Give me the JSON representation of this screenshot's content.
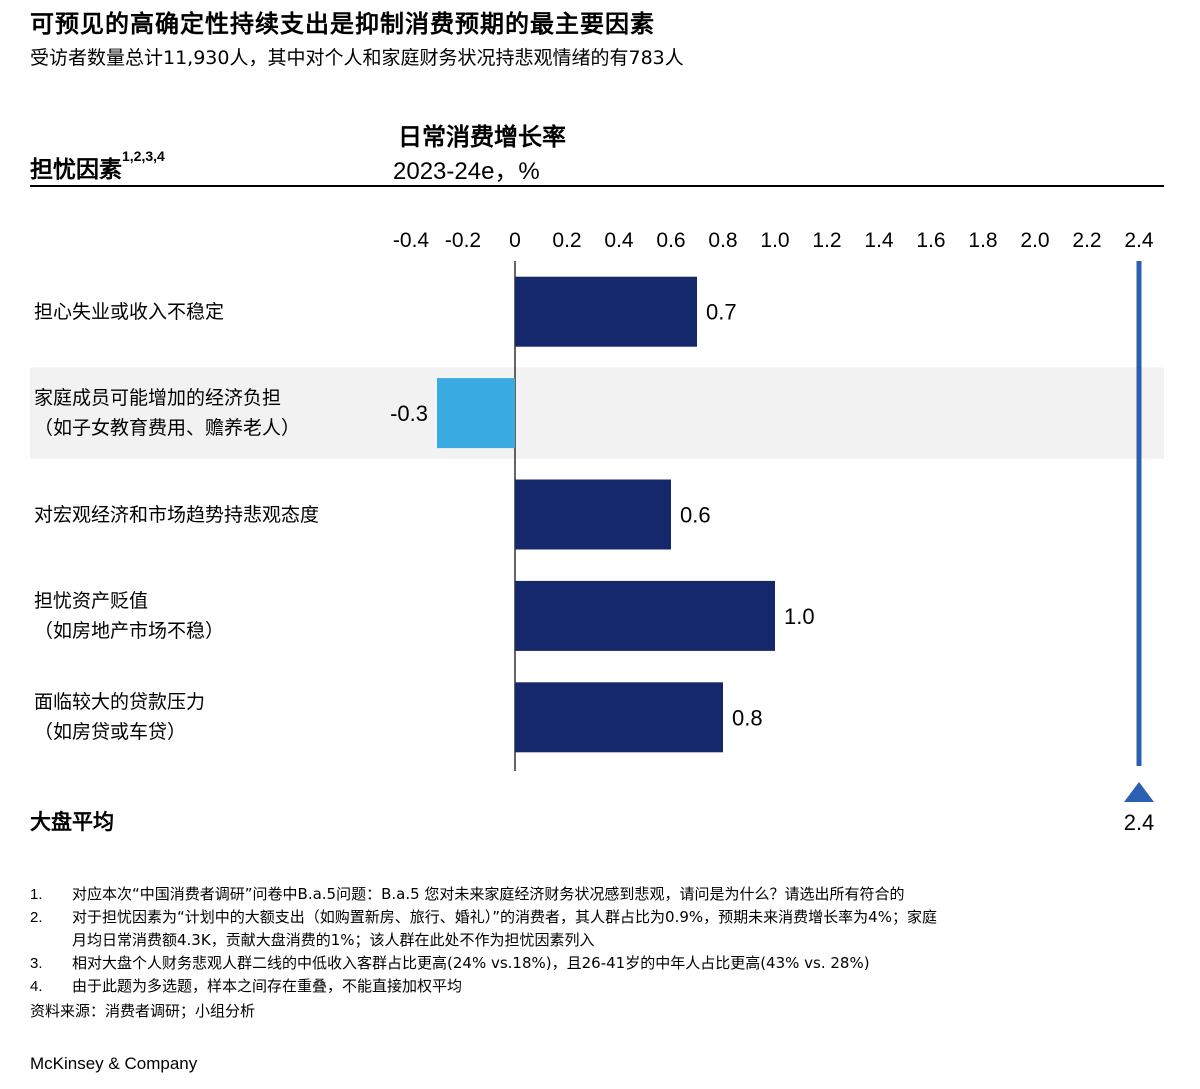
{
  "title": "可预见的高确定性持续支出是抑制消费预期的最主要因素",
  "subtitle": "受访者数量总计11,930人，其中对个人和家庭财务状况持悲观情绪的有783人",
  "metric": {
    "title": "日常消费增长率",
    "unit_line": "2023-24e，%"
  },
  "factor_header": {
    "text": "担忧因素",
    "superscript": "1,2,3,4"
  },
  "chart_data": {
    "type": "bar",
    "orientation": "horizontal",
    "categories": [
      [
        "担心失业或收入不稳定"
      ],
      [
        "家庭成员可能增加的经济负担",
        "（如子女教育费用、赡养老人）"
      ],
      [
        "对宏观经济和市场趋势持悲观态度"
      ],
      [
        "担忧资产贬值",
        "（如房地产市场不稳）"
      ],
      [
        "面临较大的贷款压力",
        "（如房贷或车贷）"
      ]
    ],
    "values": [
      0.7,
      -0.3,
      0.6,
      1.0,
      0.8
    ],
    "value_labels": [
      "0.7",
      "-0.3",
      "0.6",
      "1.0",
      "0.8"
    ],
    "xticks": [
      "-0.4",
      "-0.2",
      "0",
      "0.2",
      "0.4",
      "0.6",
      "0.8",
      "1.0",
      "1.2",
      "1.4",
      "1.6",
      "1.8",
      "2.0",
      "2.2",
      "2.4"
    ],
    "xlim": [
      -0.4,
      2.4
    ],
    "reference": {
      "label": "大盘平均",
      "value": 2.4,
      "value_label": "2.4"
    },
    "highlighted_category_index": 1,
    "colors": {
      "positive": "#14286b",
      "negative": "#3aabe0",
      "reference": "#2b5fb0",
      "highlight_band": "#f2f2f2"
    }
  },
  "footnotes": [
    {
      "num": "1.",
      "lines": [
        "对应本次“中国消费者调研”问卷中B.a.5问题：B.a.5 您对未来家庭经济财务状况感到悲观，请问是为什么？请选出所有符合的"
      ]
    },
    {
      "num": "2.",
      "lines": [
        "对于担忧因素为“计划中的大额支出（如购置新房、旅行、婚礼）”的消费者，其人群占比为0.9%，预期未来消费增长率为4%；家庭",
        "月均日常消费额4.3K，贡献大盘消费的1%；该人群在此处不作为担忧因素列入"
      ]
    },
    {
      "num": "3.",
      "lines": [
        "相对大盘个人财务悲观人群二线的中低收入客群占比更高(24% vs.18%)，且26-41岁的中年人占比更高(43% vs. 28%)"
      ]
    },
    {
      "num": "4.",
      "lines": [
        "由于此题为多选题，样本之间存在重叠，不能直接加权平均"
      ]
    }
  ],
  "source": "资料来源：消费者调研；小组分析",
  "brand": "McKinsey & Company"
}
